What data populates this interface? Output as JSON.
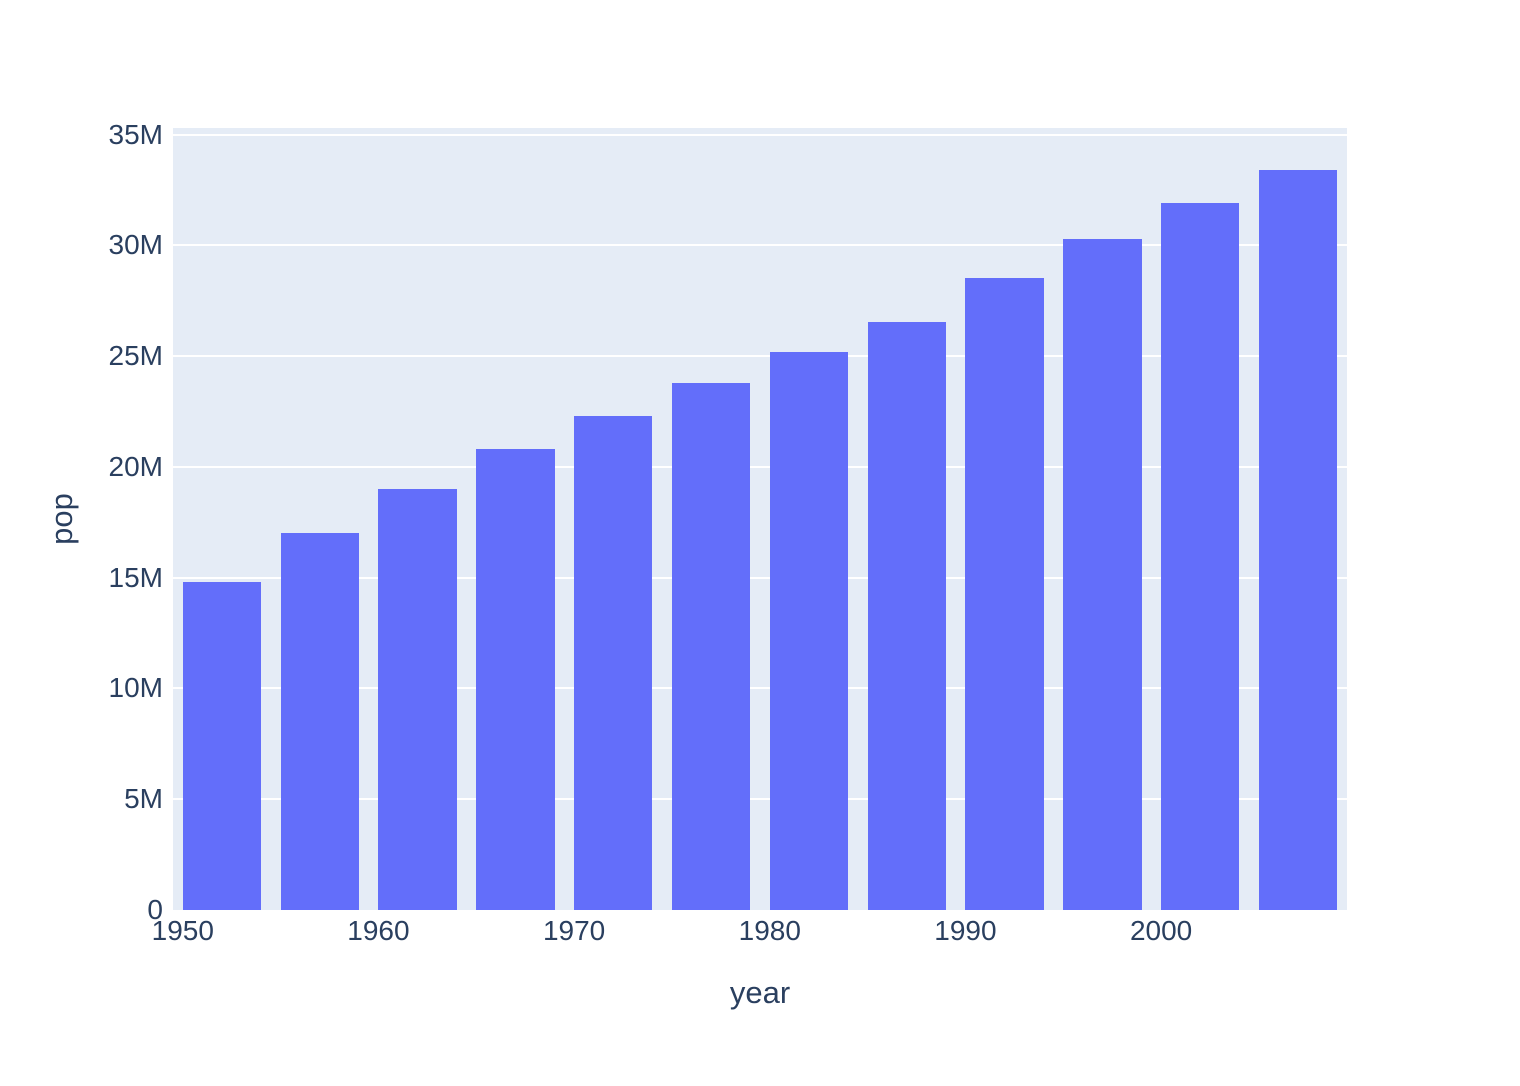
{
  "chart_data": {
    "type": "bar",
    "title": "",
    "xlabel": "year",
    "ylabel": "pop",
    "x": [
      1952,
      1957,
      1962,
      1967,
      1972,
      1977,
      1982,
      1987,
      1992,
      1997,
      2002,
      2007
    ],
    "values": [
      14785584,
      17010154,
      18985849,
      20819767,
      22284500,
      23796400,
      25201900,
      26549700,
      28523502,
      30305843,
      31902268,
      33390141
    ],
    "series_name": "pop",
    "bar_width_years": 4,
    "xlim": [
      1949.5,
      2009.5
    ],
    "ylim": [
      0,
      35300000
    ],
    "x_ticks": [
      {
        "value": 1950,
        "label": "1950"
      },
      {
        "value": 1960,
        "label": "1960"
      },
      {
        "value": 1970,
        "label": "1970"
      },
      {
        "value": 1980,
        "label": "1980"
      },
      {
        "value": 1990,
        "label": "1990"
      },
      {
        "value": 2000,
        "label": "2000"
      }
    ],
    "y_ticks": [
      {
        "value": 0,
        "label": "0"
      },
      {
        "value": 5000000,
        "label": "5M"
      },
      {
        "value": 10000000,
        "label": "10M"
      },
      {
        "value": 15000000,
        "label": "15M"
      },
      {
        "value": 20000000,
        "label": "20M"
      },
      {
        "value": 25000000,
        "label": "25M"
      },
      {
        "value": 30000000,
        "label": "30M"
      },
      {
        "value": 35000000,
        "label": "35M"
      }
    ],
    "legend": "none",
    "grid": "horizontal",
    "colors": {
      "bar": "#636EFA",
      "plot_background": "#E5ECF6",
      "gridline": "#FFFFFF",
      "text": "#2A3F5F",
      "page_background": "#FFFFFF"
    }
  }
}
